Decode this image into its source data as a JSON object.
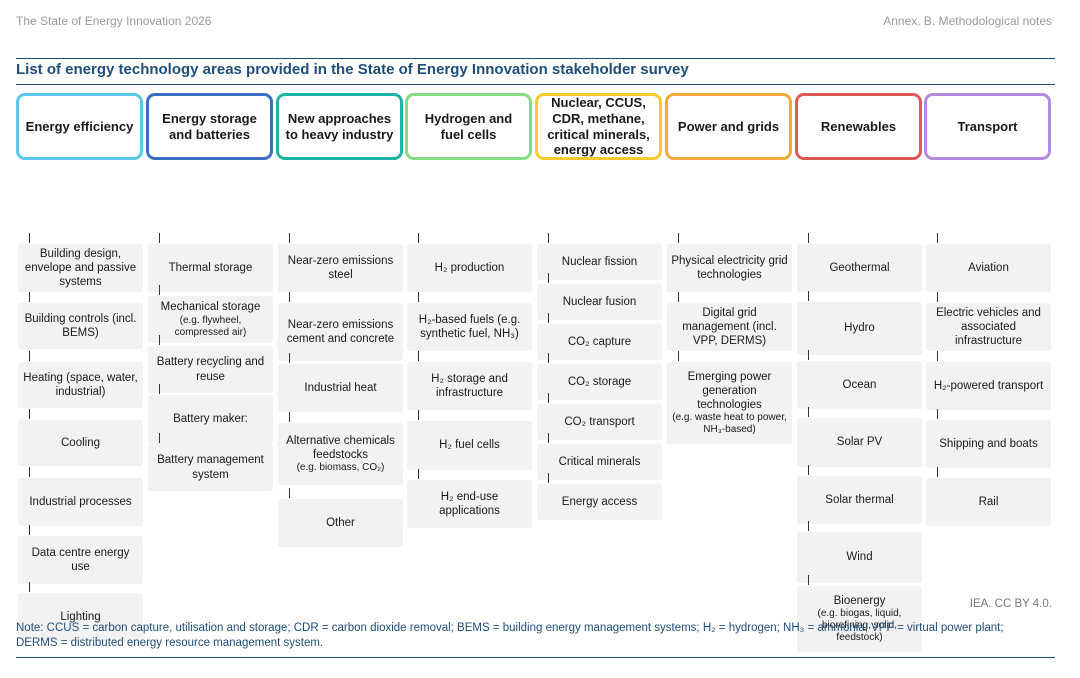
{
  "header": {
    "report_title": "The State of Energy Innovation 2026",
    "section": "Annex. B. Methodological notes"
  },
  "figure_title": "List of energy technology areas provided in the State of Energy Innovation stakeholder survey",
  "columns": [
    {
      "title": "Energy efficiency",
      "color": "#5bc8ea",
      "items": [
        {
          "text": "Building design, envelope and passive systems"
        },
        {
          "text": "Building controls (incl. BEMS)"
        },
        {
          "text": "Heating (space, water, industrial)"
        },
        {
          "text": "Cooling"
        },
        {
          "text": "Industrial processes"
        },
        {
          "text": "Data centre energy use"
        },
        {
          "text": "Lighting"
        }
      ]
    },
    {
      "title": "Energy storage and batteries",
      "color": "#3a6fc4",
      "items": [
        {
          "text": "Thermal storage"
        },
        {
          "text": "Mechanical storage",
          "sub": "(e.g. flywheel, compressed air)"
        },
        {
          "text": "Battery recycling and reuse"
        },
        {
          "text": "Battery maker:"
        },
        {
          "text": "Battery management system"
        }
      ]
    },
    {
      "title": "New approaches to heavy industry",
      "color": "#1fb3a8",
      "items": [
        {
          "text": "Near-zero emissions steel"
        },
        {
          "text": "Near-zero emissions cement and concrete"
        },
        {
          "text": "Industrial heat"
        },
        {
          "text": "Alternative chemicals feedstocks",
          "sub": "(e.g. biomass, CO₂)"
        },
        {
          "text": "Other"
        }
      ]
    },
    {
      "title": "Hydrogen and fuel cells",
      "color": "#86dc86",
      "items": [
        {
          "text": "H₂ production"
        },
        {
          "text": "H₂-based fuels (e.g. synthetic fuel, NH₃)"
        },
        {
          "text": "H₂ storage and infrastructure"
        },
        {
          "text": "H₂ fuel cells"
        },
        {
          "text": "H₂ end-use applications"
        }
      ]
    },
    {
      "title": "Nuclear, CCUS, CDR, methane, critical minerals, energy access",
      "color": "#f2cc2e",
      "items": [
        {
          "text": "Nuclear fission"
        },
        {
          "text": "Nuclear fusion"
        },
        {
          "text": "CO₂ capture"
        },
        {
          "text": "CO₂ storage"
        },
        {
          "text": "CO₂ transport"
        },
        {
          "text": "Critical minerals"
        },
        {
          "text": "Energy access"
        }
      ]
    },
    {
      "title": "Power and grids",
      "color": "#f2a93b",
      "items": [
        {
          "text": "Physical electricity grid technologies"
        },
        {
          "text": "Digital grid management (incl. VPP, DERMS)"
        },
        {
          "text": "Emerging power generation technologies",
          "sub": "(e.g. waste heat to power, NH₃-based)"
        }
      ]
    },
    {
      "title": "Renewables",
      "color": "#e05a55",
      "items": [
        {
          "text": "Geothermal"
        },
        {
          "text": "Hydro"
        },
        {
          "text": "Ocean"
        },
        {
          "text": "Solar PV"
        },
        {
          "text": "Solar thermal"
        },
        {
          "text": "Wind"
        },
        {
          "text": "Bioenergy",
          "sub": "(e.g. biogas, liquid, biorefining, solid, feedstock)"
        }
      ]
    },
    {
      "title": "Transport",
      "color": "#b28ae0",
      "items": [
        {
          "text": "Aviation"
        },
        {
          "text": "Electric vehicles and associated infrastructure"
        },
        {
          "text": "H₂-powered transport"
        },
        {
          "text": "Shipping and boats"
        },
        {
          "text": "Rail"
        }
      ]
    }
  ],
  "credit": "IEA. CC BY 4.0.",
  "note": "Note: CCUS = carbon capture, utilisation and storage; CDR = carbon dioxide removal; BEMS = building energy management systems; H₂ = hydrogen; NH₃ = ammonia; VPP = virtual power plant; DERMS = distributed energy resource management system."
}
